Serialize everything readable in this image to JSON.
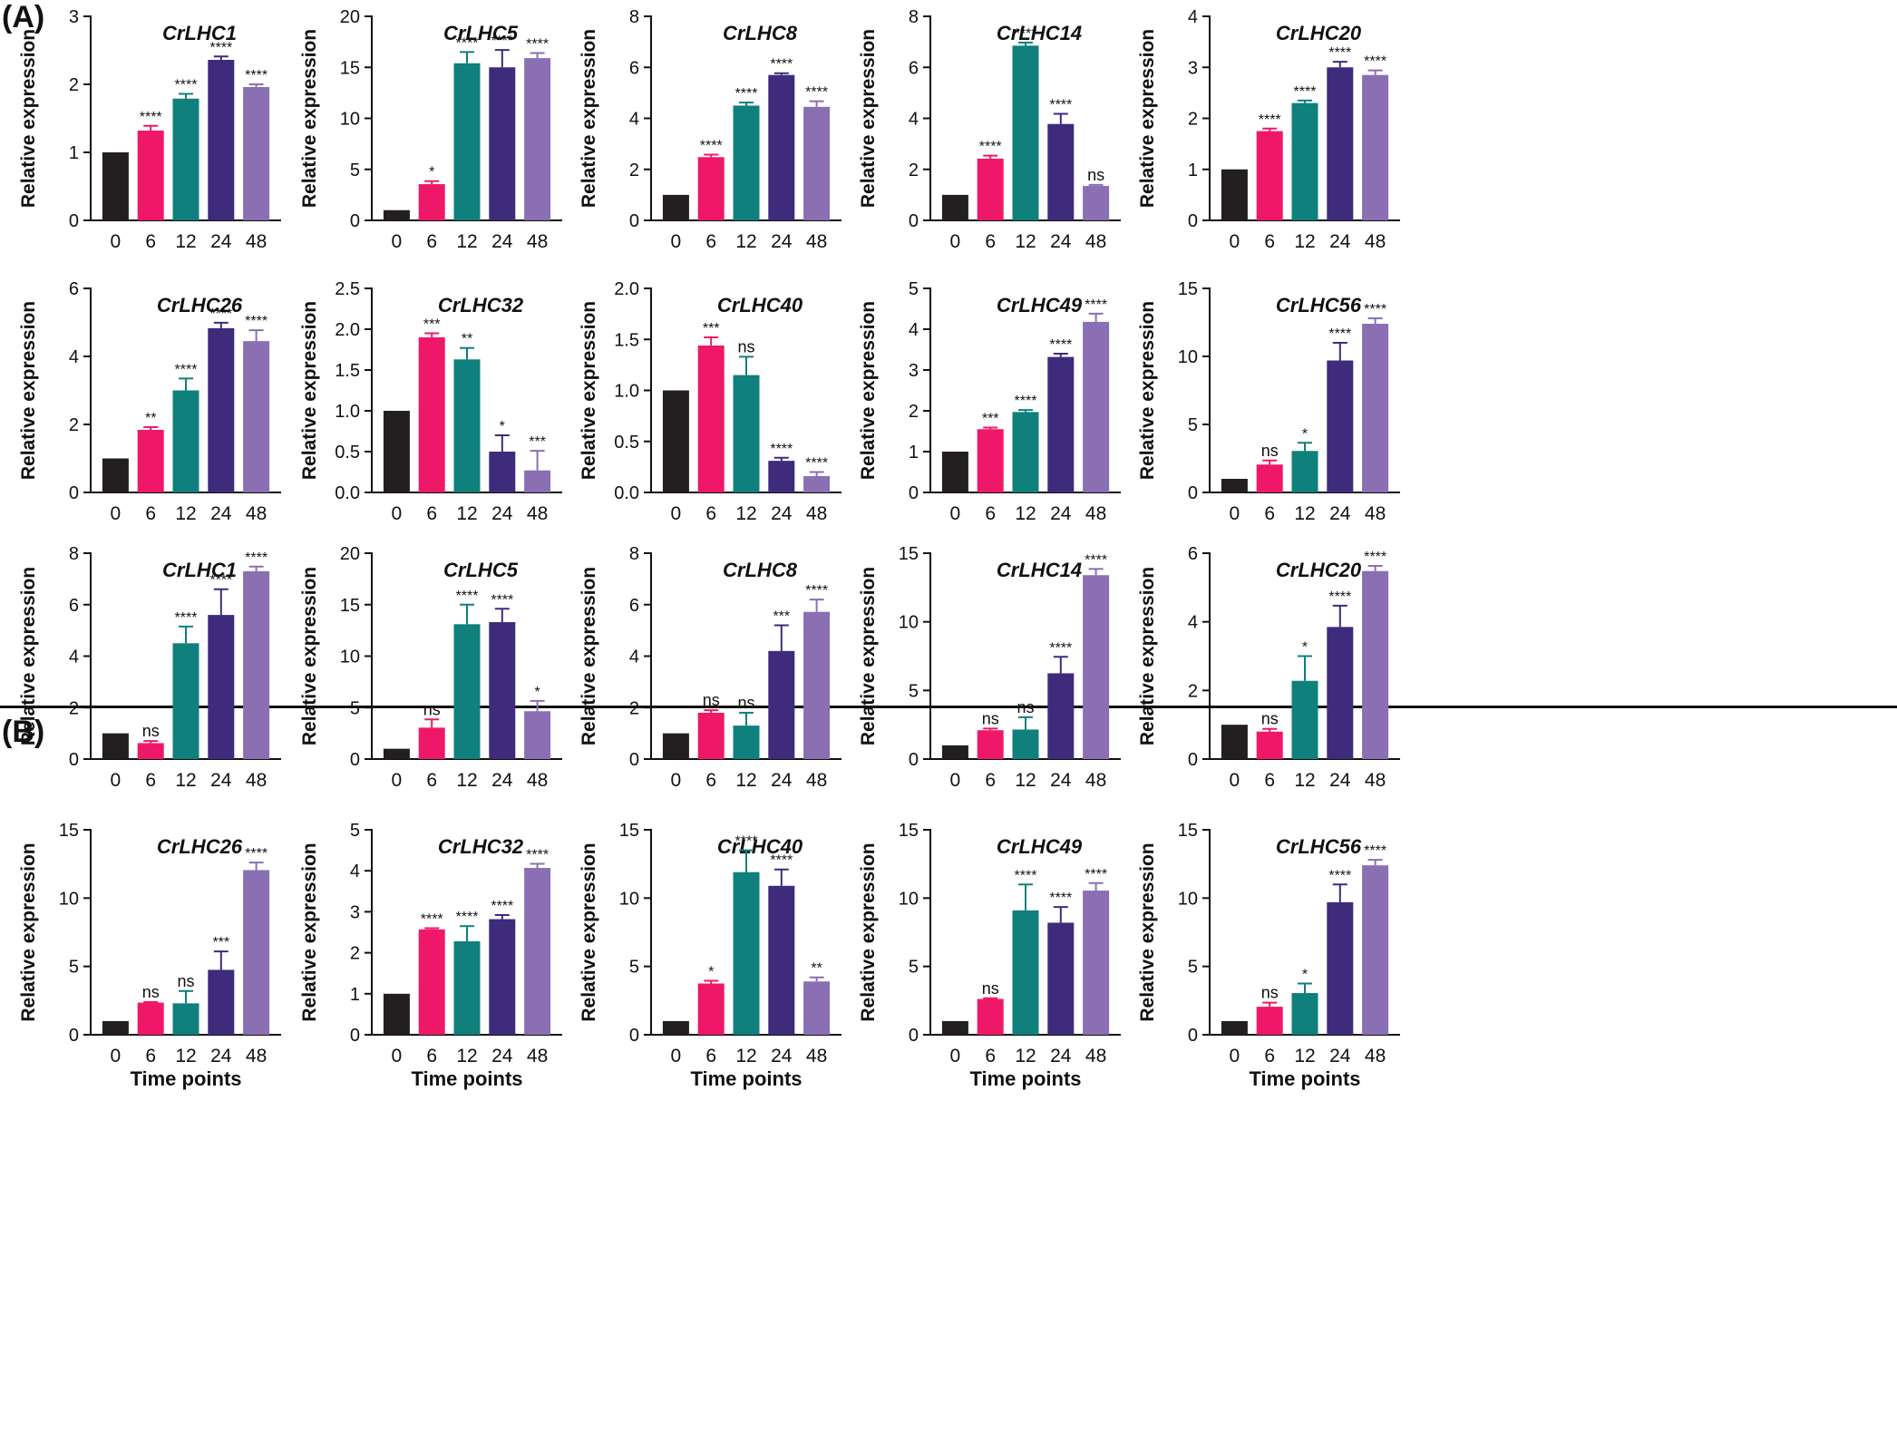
{
  "panels": [
    {
      "label": "(A)"
    },
    {
      "label": "(B)"
    }
  ],
  "categories": [
    "0",
    "6",
    "12",
    "24",
    "48"
  ],
  "colors": [
    "#231f20",
    "#ef1868",
    "#0f807c",
    "#3f2b7b",
    "#8a6fb3"
  ],
  "ylabel": "Relative expression",
  "xlabel": "Time points",
  "chart_data": [
    {
      "type": "bar",
      "title": "CrLHC1",
      "categories": [
        "0",
        "6",
        "12",
        "24",
        "48"
      ],
      "values": [
        1,
        1.32,
        1.79,
        2.36,
        1.96
      ],
      "errors": [
        0,
        0.07,
        0.07,
        0.05,
        0.04
      ],
      "sig": [
        "",
        "****",
        "****",
        "****",
        "****"
      ],
      "ylim": [
        0,
        3
      ],
      "yticks": [
        "0",
        "1",
        "2",
        "3"
      ],
      "xlabel": "",
      "ylabel": "Relative expression"
    },
    {
      "type": "bar",
      "title": "CrLHC5",
      "categories": [
        "0",
        "6",
        "12",
        "24",
        "48"
      ],
      "values": [
        1,
        3.55,
        15.4,
        15.0,
        15.9
      ],
      "errors": [
        0,
        0.3,
        1.1,
        1.7,
        0.5
      ],
      "sig": [
        "",
        "*",
        "****",
        "****",
        "****"
      ],
      "ylim": [
        0,
        20
      ],
      "yticks": [
        "0",
        "5",
        "10",
        "15",
        "20"
      ],
      "xlabel": "",
      "ylabel": "Relative expression"
    },
    {
      "type": "bar",
      "title": "CrLHC8",
      "categories": [
        "0",
        "6",
        "12",
        "24",
        "48"
      ],
      "values": [
        1,
        2.48,
        4.5,
        5.7,
        4.45
      ],
      "errors": [
        0,
        0.1,
        0.12,
        0.07,
        0.22
      ],
      "sig": [
        "",
        "****",
        "****",
        "****",
        "****"
      ],
      "ylim": [
        0,
        8
      ],
      "yticks": [
        "0",
        "2",
        "4",
        "6",
        "8"
      ],
      "xlabel": "",
      "ylabel": "Relative expression"
    },
    {
      "type": "bar",
      "title": "CrLHC14",
      "categories": [
        "0",
        "6",
        "12",
        "24",
        "48"
      ],
      "values": [
        1,
        2.42,
        6.85,
        3.78,
        1.35
      ],
      "errors": [
        0,
        0.12,
        0.12,
        0.4,
        0.04
      ],
      "sig": [
        "",
        "****",
        "****",
        "****",
        "ns"
      ],
      "ylim": [
        0,
        8
      ],
      "yticks": [
        "0",
        "2",
        "4",
        "6",
        "8"
      ],
      "xlabel": "",
      "ylabel": "Relative expression"
    },
    {
      "type": "bar",
      "title": "CrLHC20",
      "categories": [
        "0",
        "6",
        "12",
        "24",
        "48"
      ],
      "values": [
        1,
        1.75,
        2.3,
        3.0,
        2.85
      ],
      "errors": [
        0,
        0.05,
        0.05,
        0.11,
        0.09
      ],
      "sig": [
        "",
        "****",
        "****",
        "****",
        "****"
      ],
      "ylim": [
        0,
        4
      ],
      "yticks": [
        "0",
        "1",
        "2",
        "3",
        "4"
      ],
      "xlabel": "",
      "ylabel": "Relative expression"
    },
    {
      "type": "bar",
      "title": "CrLHC26",
      "categories": [
        "0",
        "6",
        "12",
        "24",
        "48"
      ],
      "values": [
        1,
        1.84,
        3.0,
        4.83,
        4.45
      ],
      "errors": [
        0,
        0.08,
        0.35,
        0.16,
        0.32
      ],
      "sig": [
        "",
        "**",
        "****",
        "****",
        "****"
      ],
      "ylim": [
        0,
        6
      ],
      "yticks": [
        "0",
        "2",
        "4",
        "6"
      ],
      "xlabel": "",
      "ylabel": "Relative expression"
    },
    {
      "type": "bar",
      "title": "CrLHC32",
      "categories": [
        "0",
        "6",
        "12",
        "24",
        "48"
      ],
      "values": [
        1,
        1.9,
        1.63,
        0.5,
        0.27
      ],
      "errors": [
        0,
        0.05,
        0.14,
        0.2,
        0.24
      ],
      "sig": [
        "",
        "***",
        "**",
        "*",
        "***"
      ],
      "ylim": [
        0,
        2.5
      ],
      "yticks": [
        "0.0",
        "0.5",
        "1.0",
        "1.5",
        "2.0",
        "2.5"
      ],
      "xlabel": "",
      "ylabel": "Relative expression"
    },
    {
      "type": "bar",
      "title": "CrLHC40",
      "categories": [
        "0",
        "6",
        "12",
        "24",
        "48"
      ],
      "values": [
        1,
        1.44,
        1.15,
        0.31,
        0.16
      ],
      "errors": [
        0,
        0.08,
        0.18,
        0.03,
        0.04
      ],
      "sig": [
        "",
        "***",
        "ns",
        "****",
        "****"
      ],
      "ylim": [
        0,
        2.0
      ],
      "yticks": [
        "0.0",
        "0.5",
        "1.0",
        "1.5",
        "2.0"
      ],
      "xlabel": "",
      "ylabel": "Relative expression"
    },
    {
      "type": "bar",
      "title": "CrLHC49",
      "categories": [
        "0",
        "6",
        "12",
        "24",
        "48"
      ],
      "values": [
        1,
        1.55,
        1.97,
        3.32,
        4.18
      ],
      "errors": [
        0,
        0.04,
        0.05,
        0.08,
        0.2
      ],
      "sig": [
        "",
        "***",
        "****",
        "****",
        "****"
      ],
      "ylim": [
        0,
        5
      ],
      "yticks": [
        "0",
        "1",
        "2",
        "3",
        "4",
        "5"
      ],
      "xlabel": "",
      "ylabel": "Relative expression"
    },
    {
      "type": "bar",
      "title": "CrLHC56",
      "categories": [
        "0",
        "6",
        "12",
        "24",
        "48"
      ],
      "values": [
        1,
        2.05,
        3.05,
        9.7,
        12.4
      ],
      "errors": [
        0,
        0.3,
        0.6,
        1.3,
        0.4
      ],
      "sig": [
        "",
        "ns",
        "*",
        "****",
        "****"
      ],
      "ylim": [
        0,
        15
      ],
      "yticks": [
        "0",
        "5",
        "10",
        "15"
      ],
      "xlabel": "",
      "ylabel": "Relative expression"
    },
    {
      "type": "bar",
      "title": "CrLHC1",
      "categories": [
        "0",
        "6",
        "12",
        "24",
        "48"
      ],
      "values": [
        1,
        0.62,
        4.5,
        5.6,
        7.3
      ],
      "errors": [
        0,
        0.08,
        0.65,
        1.0,
        0.18
      ],
      "sig": [
        "",
        "ns",
        "****",
        "****",
        "****"
      ],
      "ylim": [
        0,
        8
      ],
      "yticks": [
        "0",
        "2",
        "4",
        "6",
        "8"
      ],
      "xlabel": "",
      "ylabel": "Relative expression"
    },
    {
      "type": "bar",
      "title": "CrLHC5",
      "categories": [
        "0",
        "6",
        "12",
        "24",
        "48"
      ],
      "values": [
        1,
        3.05,
        13.1,
        13.3,
        4.65
      ],
      "errors": [
        0,
        0.8,
        1.9,
        1.3,
        1.0
      ],
      "sig": [
        "",
        "ns",
        "****",
        "****",
        "*"
      ],
      "ylim": [
        0,
        20
      ],
      "yticks": [
        "0",
        "5",
        "10",
        "15",
        "20"
      ],
      "xlabel": "",
      "ylabel": "Relative expression"
    },
    {
      "type": "bar",
      "title": "CrLHC8",
      "categories": [
        "0",
        "6",
        "12",
        "24",
        "48"
      ],
      "values": [
        1,
        1.8,
        1.3,
        4.2,
        5.72
      ],
      "errors": [
        0,
        0.1,
        0.5,
        1.0,
        0.48
      ],
      "sig": [
        "",
        "ns",
        "ns",
        "***",
        "****"
      ],
      "ylim": [
        0,
        8
      ],
      "yticks": [
        "0",
        "2",
        "4",
        "6",
        "8"
      ],
      "xlabel": "",
      "ylabel": "Relative expression"
    },
    {
      "type": "bar",
      "title": "CrLHC14",
      "categories": [
        "0",
        "6",
        "12",
        "24",
        "48"
      ],
      "values": [
        1,
        2.1,
        2.15,
        6.25,
        13.4
      ],
      "errors": [
        0,
        0.12,
        0.9,
        1.2,
        0.45
      ],
      "sig": [
        "",
        "ns",
        "ns",
        "****",
        "****"
      ],
      "ylim": [
        0,
        15
      ],
      "yticks": [
        "0",
        "5",
        "10",
        "15"
      ],
      "xlabel": "",
      "ylabel": "Relative expression"
    },
    {
      "type": "bar",
      "title": "CrLHC20",
      "categories": [
        "0",
        "6",
        "12",
        "24",
        "48"
      ],
      "values": [
        1,
        0.8,
        2.28,
        3.85,
        5.48
      ],
      "errors": [
        0,
        0.08,
        0.72,
        0.62,
        0.15
      ],
      "sig": [
        "",
        "ns",
        "*",
        "****",
        "****"
      ],
      "ylim": [
        0,
        6
      ],
      "yticks": [
        "0",
        "2",
        "4",
        "6"
      ],
      "xlabel": "",
      "ylabel": "Relative expression"
    },
    {
      "type": "bar",
      "title": "CrLHC26",
      "categories": [
        "0",
        "6",
        "12",
        "24",
        "48"
      ],
      "values": [
        1,
        2.35,
        2.3,
        4.75,
        12.05
      ],
      "errors": [
        0,
        0.05,
        0.9,
        1.35,
        0.55
      ],
      "sig": [
        "",
        "ns",
        "ns",
        "***",
        "****"
      ],
      "ylim": [
        0,
        15
      ],
      "yticks": [
        "0",
        "5",
        "10",
        "15"
      ],
      "xlabel": "Time points",
      "ylabel": "Relative expression"
    },
    {
      "type": "bar",
      "title": "CrLHC32",
      "categories": [
        "0",
        "6",
        "12",
        "24",
        "48"
      ],
      "values": [
        1,
        2.57,
        2.28,
        2.82,
        4.07
      ],
      "errors": [
        0,
        0.03,
        0.37,
        0.1,
        0.1
      ],
      "sig": [
        "",
        "****",
        "****",
        "****",
        "****"
      ],
      "ylim": [
        0,
        5
      ],
      "yticks": [
        "0",
        "1",
        "2",
        "3",
        "4",
        "5"
      ],
      "xlabel": "Time points",
      "ylabel": "Relative expression"
    },
    {
      "type": "bar",
      "title": "CrLHC40",
      "categories": [
        "0",
        "6",
        "12",
        "24",
        "48"
      ],
      "values": [
        1,
        3.75,
        11.9,
        10.9,
        3.9
      ],
      "errors": [
        0,
        0.2,
        1.6,
        1.2,
        0.3
      ],
      "sig": [
        "",
        "*",
        "****",
        "****",
        "**"
      ],
      "ylim": [
        0,
        15
      ],
      "yticks": [
        "0",
        "5",
        "10",
        "15"
      ],
      "xlabel": "Time points",
      "ylabel": "Relative expression"
    },
    {
      "type": "bar",
      "title": "CrLHC49",
      "categories": [
        "0",
        "6",
        "12",
        "24",
        "48"
      ],
      "values": [
        1,
        2.62,
        9.1,
        8.2,
        10.55
      ],
      "errors": [
        0,
        0.05,
        1.9,
        1.15,
        0.55
      ],
      "sig": [
        "",
        "ns",
        "****",
        "****",
        "****"
      ],
      "ylim": [
        0,
        15
      ],
      "yticks": [
        "0",
        "5",
        "10",
        "15"
      ],
      "xlabel": "Time points",
      "ylabel": "Relative expression"
    },
    {
      "type": "bar",
      "title": "CrLHC56",
      "categories": [
        "0",
        "6",
        "12",
        "24",
        "48"
      ],
      "values": [
        1,
        2.05,
        3.05,
        9.7,
        12.4
      ],
      "errors": [
        0,
        0.3,
        0.7,
        1.3,
        0.4
      ],
      "sig": [
        "",
        "ns",
        "*",
        "****",
        "****"
      ],
      "ylim": [
        0,
        15
      ],
      "yticks": [
        "0",
        "5",
        "10",
        "15"
      ],
      "xlabel": "Time points",
      "ylabel": "Relative expression"
    }
  ]
}
